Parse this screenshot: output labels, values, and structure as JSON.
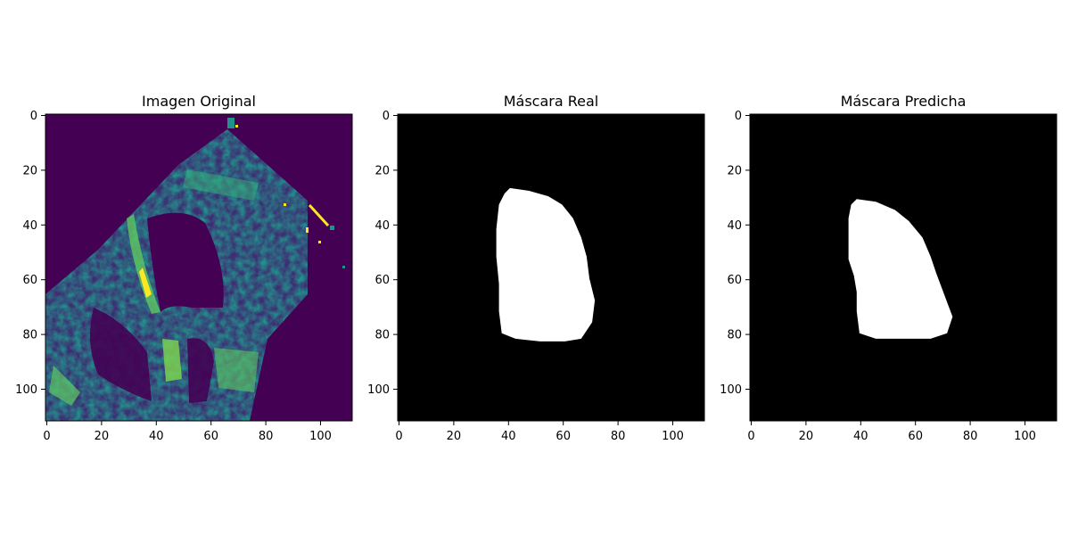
{
  "figure": {
    "panels": [
      {
        "title": "Imagen Original",
        "colormap": "viridis",
        "x_ticks": [
          "0",
          "20",
          "40",
          "60",
          "80",
          "100"
        ],
        "y_ticks": [
          "0",
          "20",
          "40",
          "60",
          "80",
          "100"
        ]
      },
      {
        "title": "Máscara Real",
        "colormap": "gray",
        "x_ticks": [
          "0",
          "20",
          "40",
          "60",
          "80",
          "100"
        ],
        "y_ticks": [
          "0",
          "20",
          "40",
          "60",
          "80",
          "100"
        ]
      },
      {
        "title": "Máscara Predicha",
        "colormap": "gray",
        "x_ticks": [
          "0",
          "20",
          "40",
          "60",
          "80",
          "100"
        ],
        "y_ticks": [
          "0",
          "20",
          "40",
          "60",
          "80",
          "100"
        ]
      }
    ]
  },
  "chart_data": [
    {
      "type": "heatmap",
      "title": "Imagen Original",
      "xlim": [
        0,
        112
      ],
      "ylim": [
        112,
        0
      ],
      "colormap": "viridis"
    },
    {
      "type": "heatmap",
      "title": "Máscara Real",
      "xlim": [
        0,
        112
      ],
      "ylim": [
        112,
        0
      ],
      "colormap": "gray",
      "mask_outline": [
        [
          41,
          27
        ],
        [
          48,
          28
        ],
        [
          55,
          30
        ],
        [
          60,
          33
        ],
        [
          64,
          38
        ],
        [
          67,
          45
        ],
        [
          69,
          52
        ],
        [
          70,
          60
        ],
        [
          72,
          68
        ],
        [
          71,
          76
        ],
        [
          67,
          82
        ],
        [
          61,
          83
        ],
        [
          52,
          83
        ],
        [
          43,
          82
        ],
        [
          38,
          80
        ],
        [
          37,
          72
        ],
        [
          37,
          62
        ],
        [
          36,
          52
        ],
        [
          36,
          42
        ],
        [
          37,
          33
        ],
        [
          39,
          29
        ]
      ]
    },
    {
      "type": "heatmap",
      "title": "Máscara Predicha",
      "xlim": [
        0,
        112
      ],
      "ylim": [
        112,
        0
      ],
      "colormap": "gray",
      "mask_outline": [
        [
          39,
          31
        ],
        [
          46,
          32
        ],
        [
          53,
          35
        ],
        [
          58,
          39
        ],
        [
          63,
          45
        ],
        [
          66,
          52
        ],
        [
          68,
          58
        ],
        [
          71,
          66
        ],
        [
          74,
          74
        ],
        [
          72,
          80
        ],
        [
          66,
          82
        ],
        [
          56,
          82
        ],
        [
          46,
          82
        ],
        [
          40,
          80
        ],
        [
          39,
          72
        ],
        [
          39,
          65
        ],
        [
          38,
          59
        ],
        [
          36,
          53
        ],
        [
          36,
          46
        ],
        [
          36,
          38
        ],
        [
          37,
          33
        ]
      ]
    }
  ]
}
